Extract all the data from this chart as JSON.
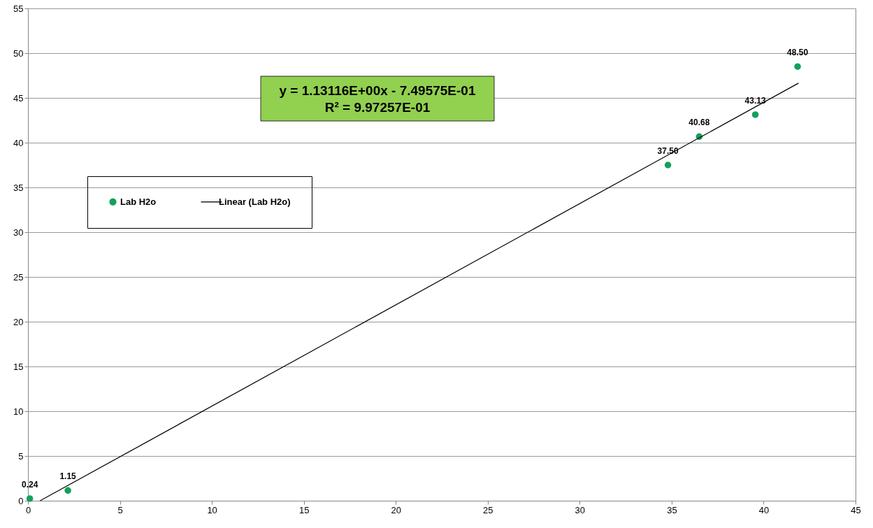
{
  "chart_data": {
    "type": "scatter",
    "x": [
      0.1,
      2.17,
      34.8,
      36.5,
      39.55,
      41.85
    ],
    "series": [
      {
        "name": "Lab H2o",
        "color": "#13a05a",
        "marker": "circle",
        "values": [
          0.24,
          1.15,
          37.5,
          40.68,
          43.13,
          48.5
        ],
        "value_labels": [
          "0.24",
          "1.15",
          "37.50",
          "40.68",
          "43.13",
          "48.50"
        ]
      },
      {
        "name": "Linear (Lab H2o)",
        "type": "line",
        "color": "#000000",
        "x": [
          0.66,
          41.9
        ],
        "values": [
          0,
          46.65
        ]
      }
    ],
    "annotations": [
      "y = 1.13116E+00x - 7.49575E-01",
      "R² = 9.97257E-01"
    ],
    "xlim": [
      0,
      45
    ],
    "xticks": [
      0,
      5,
      10,
      15,
      20,
      25,
      30,
      35,
      40,
      45
    ],
    "ylim": [
      0,
      55
    ],
    "yticks": [
      0,
      5,
      10,
      15,
      20,
      25,
      30,
      35,
      40,
      45,
      50,
      55
    ],
    "grid": "y",
    "legend": "left"
  }
}
